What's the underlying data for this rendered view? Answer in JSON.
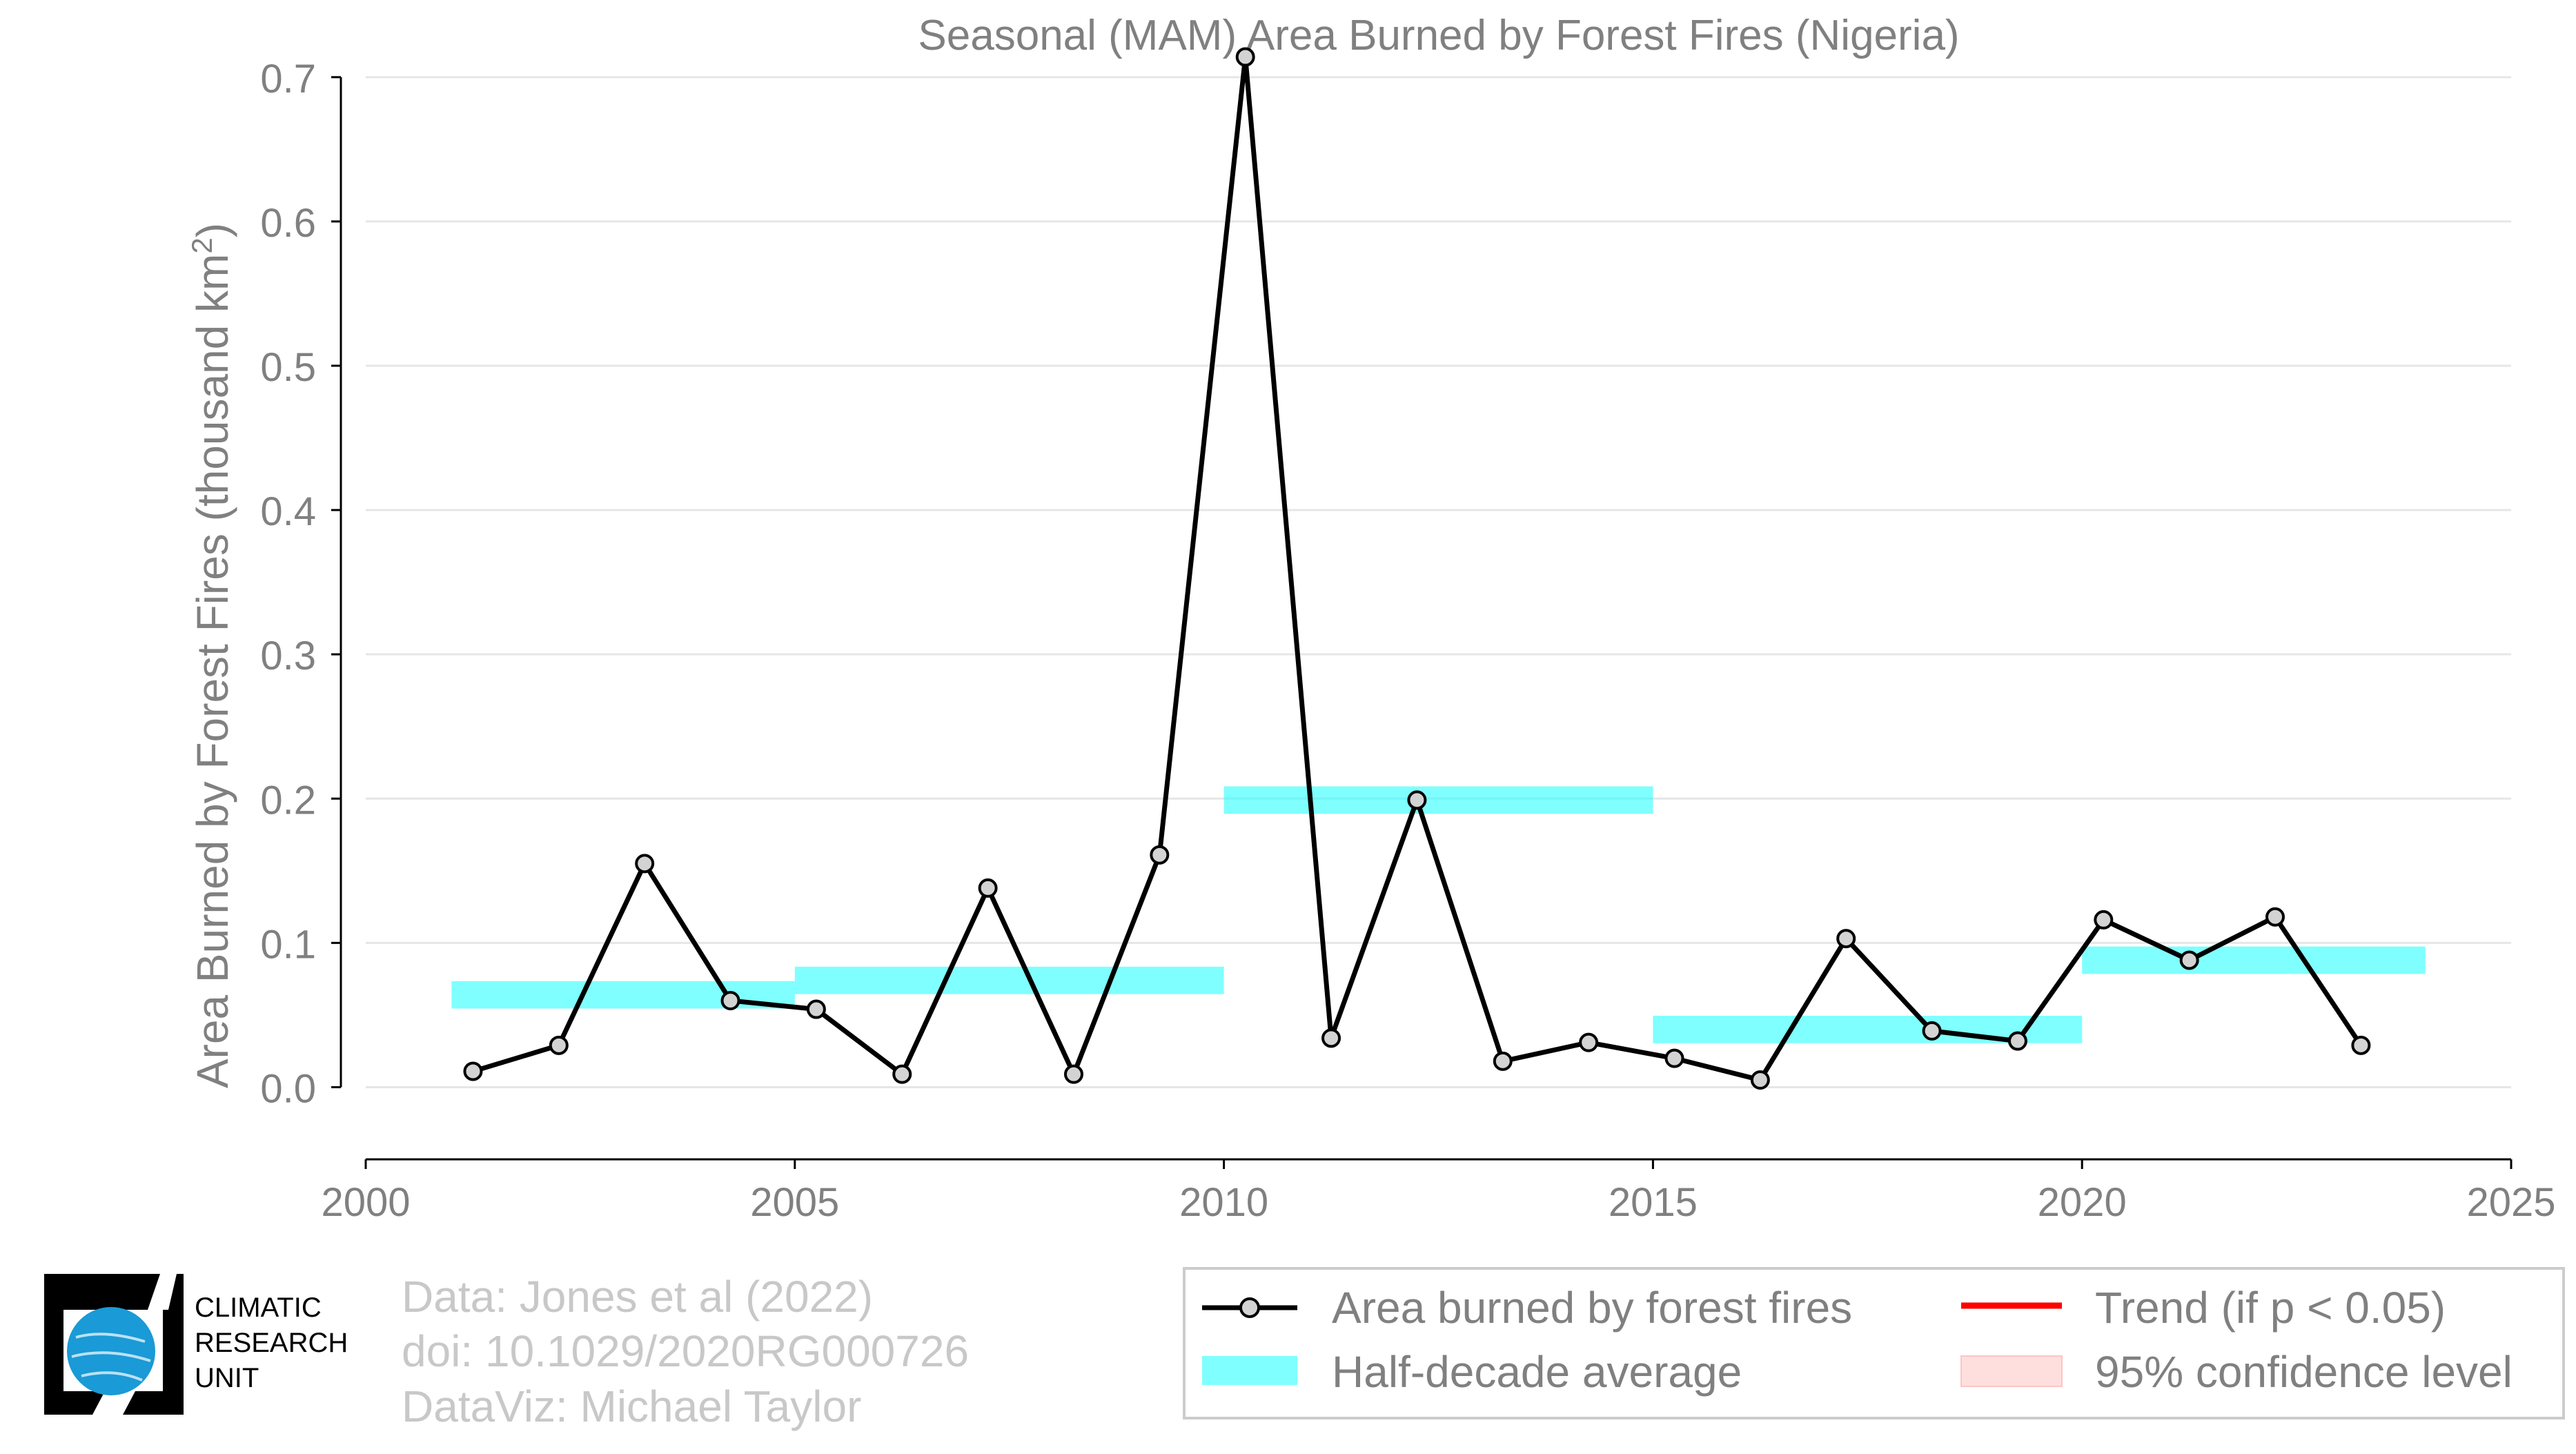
{
  "chart_data": {
    "type": "line",
    "title": "Seasonal (MAM) Area Burned by Forest Fires (Nigeria)",
    "xlabel": "",
    "ylabel": "Area Burned by Forest Fires (thousand km",
    "ylabel_sup": "2",
    "ylabel_close": ")",
    "xlim": [
      2000,
      2025
    ],
    "ylim": [
      -0.05,
      0.72
    ],
    "xticks": [
      "2000",
      "2005",
      "2010",
      "2015",
      "2020",
      "2025"
    ],
    "yticks": [
      "0.0",
      "0.1",
      "0.2",
      "0.3",
      "0.4",
      "0.5",
      "0.6",
      "0.7"
    ],
    "grid": true,
    "series": [
      {
        "name": "Area burned by forest fires",
        "x": [
          2001.25,
          2002.25,
          2003.25,
          2004.25,
          2005.25,
          2006.25,
          2007.25,
          2008.25,
          2009.25,
          2010.25,
          2011.25,
          2012.25,
          2013.25,
          2014.25,
          2015.25,
          2016.25,
          2017.25,
          2018.25,
          2019.25,
          2020.25,
          2021.25,
          2022.25,
          2023.25
        ],
        "values": [
          0.011,
          0.029,
          0.155,
          0.06,
          0.054,
          0.009,
          0.138,
          0.009,
          0.161,
          0.714,
          0.034,
          0.199,
          0.018,
          0.031,
          0.02,
          0.005,
          0.103,
          0.039,
          0.032,
          0.116,
          0.088,
          0.118,
          0.029
        ],
        "color": "#000000",
        "marker_fill": "#d3d3d3"
      }
    ],
    "half_decade_average": {
      "name": "Half-decade average",
      "color": "#00ffff",
      "segments": [
        {
          "x0": 2001,
          "x1": 2005,
          "y": 0.064
        },
        {
          "x0": 2005,
          "x1": 2010,
          "y": 0.074
        },
        {
          "x0": 2010,
          "x1": 2015,
          "y": 0.199
        },
        {
          "x0": 2015,
          "x1": 2020,
          "y": 0.04
        },
        {
          "x0": 2020,
          "x1": 2024,
          "y": 0.088
        }
      ]
    },
    "legend": {
      "placement": "bottom-right",
      "entries": [
        {
          "label": "Area burned by forest fires",
          "kind": "line-marker",
          "color": "#000000"
        },
        {
          "label": "Trend (if p < 0.05)",
          "kind": "line",
          "color": "#ff0000"
        },
        {
          "label": "Half-decade average",
          "kind": "patch",
          "color": "#00ffff"
        },
        {
          "label": "95% confidence level",
          "kind": "patch",
          "color": "#ffdede"
        }
      ]
    }
  },
  "credits": {
    "line1": "Data: Jones et al (2022)",
    "line2": "doi: 10.1029/2020RG000726",
    "line3": "DataViz: Michael Taylor"
  },
  "logo": {
    "line1": "CLIMATIC",
    "line2": "RESEARCH",
    "line3": "UNIT",
    "globe_color": "#1a9ad6"
  },
  "colors": {
    "axis_text": "#808080",
    "grid": "#e6e6e6"
  }
}
